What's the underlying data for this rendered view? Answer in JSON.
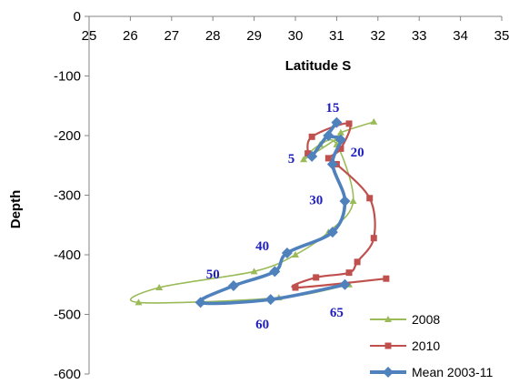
{
  "chart_data": {
    "type": "line",
    "xlabel": "Latitude S",
    "ylabel": "Depth",
    "xlim": [
      25,
      35
    ],
    "ylim": [
      -600,
      0
    ],
    "x_ticks": [
      "25",
      "26",
      "27",
      "28",
      "29",
      "30",
      "31",
      "32",
      "33",
      "34",
      "35"
    ],
    "y_ticks": [
      "0",
      "-100",
      "-200",
      "-300",
      "-400",
      "-500",
      "-600"
    ],
    "x_axis_position": "top",
    "grid": false,
    "legend_position": "bottom-right",
    "series": [
      {
        "name": "2008",
        "color": "#9bbb59",
        "marker": "triangle",
        "points": [
          [
            31.9,
            -177
          ],
          [
            31.1,
            -195
          ],
          [
            31.0,
            -205
          ],
          [
            30.2,
            -240
          ],
          [
            30.6,
            -215
          ],
          [
            31.0,
            -215
          ],
          [
            31.4,
            -310
          ],
          [
            30.8,
            -362
          ],
          [
            30.0,
            -400
          ],
          [
            29.0,
            -428
          ],
          [
            26.7,
            -455
          ],
          [
            26.2,
            -480
          ],
          [
            29.6,
            -472
          ],
          [
            31.3,
            -450
          ]
        ]
      },
      {
        "name": "2010",
        "color": "#c0504d",
        "marker": "square",
        "points": [
          [
            30.3,
            -230
          ],
          [
            30.4,
            -202
          ],
          [
            31.3,
            -180
          ],
          [
            31.1,
            -222
          ],
          [
            30.8,
            -238
          ],
          [
            31.0,
            -248
          ],
          [
            31.8,
            -305
          ],
          [
            31.9,
            -372
          ],
          [
            31.5,
            -412
          ],
          [
            31.3,
            -430
          ],
          [
            30.5,
            -438
          ],
          [
            30.0,
            -455
          ],
          [
            32.2,
            -440
          ]
        ]
      },
      {
        "name": "Mean 2003-11",
        "color": "#4f81bd",
        "marker": "diamond",
        "points": [
          [
            30.4,
            -235
          ],
          [
            31.0,
            -178
          ],
          [
            30.8,
            -200
          ],
          [
            31.1,
            -207
          ],
          [
            30.9,
            -248
          ],
          [
            31.2,
            -310
          ],
          [
            30.9,
            -362
          ],
          [
            29.8,
            -397
          ],
          [
            29.5,
            -428
          ],
          [
            28.5,
            -452
          ],
          [
            27.7,
            -480
          ],
          [
            29.4,
            -475
          ],
          [
            31.2,
            -450
          ]
        ]
      }
    ],
    "annotations": [
      {
        "text": "15",
        "x": 30.9,
        "y": -160
      },
      {
        "text": "5",
        "x": 29.9,
        "y": -246
      },
      {
        "text": "20",
        "x": 31.5,
        "y": -235
      },
      {
        "text": "30",
        "x": 30.5,
        "y": -315
      },
      {
        "text": "40",
        "x": 29.2,
        "y": -392
      },
      {
        "text": "50",
        "x": 28.0,
        "y": -440
      },
      {
        "text": "60",
        "x": 29.2,
        "y": -524
      },
      {
        "text": "65",
        "x": 31.0,
        "y": -504
      }
    ]
  }
}
